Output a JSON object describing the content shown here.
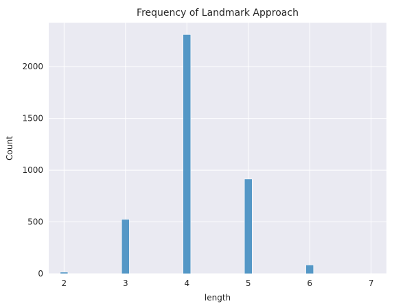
{
  "chart_data": {
    "type": "bar",
    "title": "Frequency of Landmark Approach",
    "xlabel": "length",
    "ylabel": "Count",
    "x_ticks": [
      "2",
      "3",
      "4",
      "5",
      "6",
      "7"
    ],
    "y_ticks": [
      "0",
      "500",
      "1000",
      "1500",
      "2000"
    ],
    "xlim": [
      1.75,
      7.25
    ],
    "ylim": [
      0,
      2425
    ],
    "bar_width": 0.125,
    "categories": [
      "2",
      "3",
      "4",
      "5",
      "6",
      "7"
    ],
    "values": [
      15,
      525,
      2310,
      915,
      85,
      0
    ],
    "grid": true,
    "colors": {
      "bar": "#4c92c3",
      "background": "#eaeaf2",
      "grid": "#ffffff"
    }
  }
}
